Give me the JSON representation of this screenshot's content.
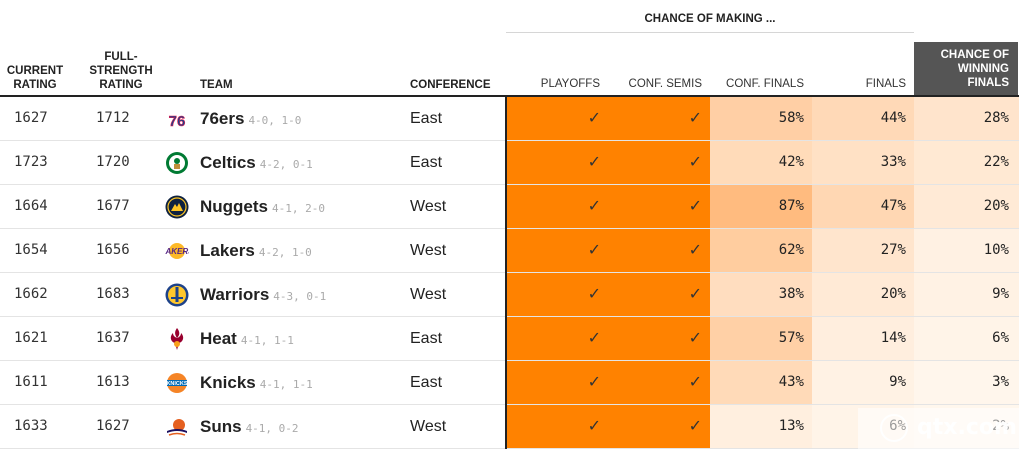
{
  "header": {
    "chance_group": "CHANCE OF MAKING ...",
    "current_rating": [
      "CURRENT",
      "RATING"
    ],
    "full_strength": [
      "FULL-",
      "STRENGTH",
      "RATING"
    ],
    "team": "TEAM",
    "conference": "CONFERENCE",
    "playoffs": "PLAYOFFS",
    "conf_semis": "CONF. SEMIS",
    "conf_finals": "CONF. FINALS",
    "finals": "FINALS",
    "winning": [
      "CHANCE OF",
      "WINNING",
      "FINALS"
    ]
  },
  "colors": {
    "full": "#ff8200",
    "accent_dark": "#555555"
  },
  "rows": [
    {
      "current": "1627",
      "full": "1712",
      "team": "76ers",
      "record": "4-0, 1-0",
      "logo": "76ers-logo",
      "conf": "East",
      "playoffs": "✓",
      "semis": "✓",
      "conf_finals": "58%",
      "finals": "44%",
      "win": "28%",
      "cf_v": 58,
      "f_v": 44,
      "w_v": 28
    },
    {
      "current": "1723",
      "full": "1720",
      "team": "Celtics",
      "record": "4-2, 0-1",
      "logo": "celtics-logo",
      "conf": "East",
      "playoffs": "✓",
      "semis": "✓",
      "conf_finals": "42%",
      "finals": "33%",
      "win": "22%",
      "cf_v": 42,
      "f_v": 33,
      "w_v": 22
    },
    {
      "current": "1664",
      "full": "1677",
      "team": "Nuggets",
      "record": "4-1, 2-0",
      "logo": "nuggets-logo",
      "conf": "West",
      "playoffs": "✓",
      "semis": "✓",
      "conf_finals": "87%",
      "finals": "47%",
      "win": "20%",
      "cf_v": 87,
      "f_v": 47,
      "w_v": 20
    },
    {
      "current": "1654",
      "full": "1656",
      "team": "Lakers",
      "record": "4-2, 1-0",
      "logo": "lakers-logo",
      "conf": "West",
      "playoffs": "✓",
      "semis": "✓",
      "conf_finals": "62%",
      "finals": "27%",
      "win": "10%",
      "cf_v": 62,
      "f_v": 27,
      "w_v": 10
    },
    {
      "current": "1662",
      "full": "1683",
      "team": "Warriors",
      "record": "4-3, 0-1",
      "logo": "warriors-logo",
      "conf": "West",
      "playoffs": "✓",
      "semis": "✓",
      "conf_finals": "38%",
      "finals": "20%",
      "win": "9%",
      "cf_v": 38,
      "f_v": 20,
      "w_v": 9
    },
    {
      "current": "1621",
      "full": "1637",
      "team": "Heat",
      "record": "4-1, 1-1",
      "logo": "heat-logo",
      "conf": "East",
      "playoffs": "✓",
      "semis": "✓",
      "conf_finals": "57%",
      "finals": "14%",
      "win": "6%",
      "cf_v": 57,
      "f_v": 14,
      "w_v": 6
    },
    {
      "current": "1611",
      "full": "1613",
      "team": "Knicks",
      "record": "4-1, 1-1",
      "logo": "knicks-logo",
      "conf": "East",
      "playoffs": "✓",
      "semis": "✓",
      "conf_finals": "43%",
      "finals": "9%",
      "win": "3%",
      "cf_v": 43,
      "f_v": 9,
      "w_v": 3
    },
    {
      "current": "1633",
      "full": "1627",
      "team": "Suns",
      "record": "4-1, 0-2",
      "logo": "suns-logo",
      "conf": "West",
      "playoffs": "✓",
      "semis": "✓",
      "conf_finals": "13%",
      "finals": "6%",
      "win": "2%",
      "cf_v": 13,
      "f_v": 6,
      "w_v": 2
    }
  ],
  "watermark": "qtx.com"
}
